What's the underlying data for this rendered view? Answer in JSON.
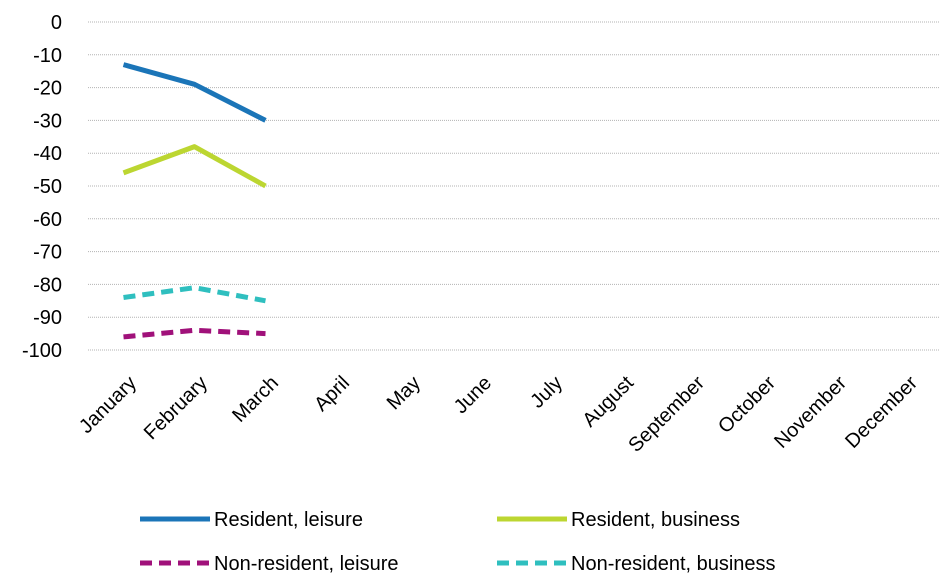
{
  "chart_data": {
    "type": "line",
    "title": "",
    "xlabel": "",
    "ylabel": "",
    "categories": [
      "January",
      "February",
      "March",
      "April",
      "May",
      "June",
      "July",
      "August",
      "September",
      "October",
      "November",
      "December"
    ],
    "y_ticks": [
      "0",
      "-10",
      "-20",
      "-30",
      "-40",
      "-50",
      "-60",
      "-70",
      "-80",
      "-90",
      "-100"
    ],
    "ylim": [
      -100,
      0
    ],
    "grid": true,
    "legend_position": "bottom",
    "series": [
      {
        "name": "Resident, leisure",
        "color": "#1b75b8",
        "dash": "solid",
        "values": [
          -13,
          -19,
          -30,
          null,
          null,
          null,
          null,
          null,
          null,
          null,
          null,
          null
        ]
      },
      {
        "name": "Resident, business",
        "color": "#bcd631",
        "dash": "solid",
        "values": [
          -46,
          -38,
          -50,
          null,
          null,
          null,
          null,
          null,
          null,
          null,
          null,
          null
        ]
      },
      {
        "name": "Non-resident, leisure",
        "color": "#a0117a",
        "dash": "dashed",
        "values": [
          -96,
          -94,
          -95,
          null,
          null,
          null,
          null,
          null,
          null,
          null,
          null,
          null
        ]
      },
      {
        "name": "Non-resident, business",
        "color": "#2fbfbf",
        "dash": "dashed",
        "values": [
          -84,
          -81,
          -85,
          null,
          null,
          null,
          null,
          null,
          null,
          null,
          null,
          null
        ]
      }
    ]
  }
}
